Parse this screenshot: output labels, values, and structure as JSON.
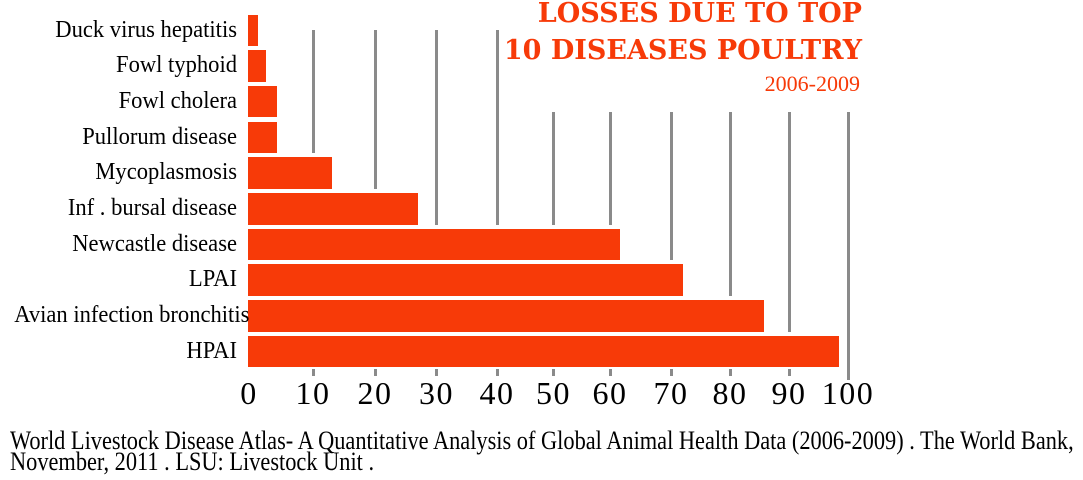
{
  "chart_data": {
    "type": "bar",
    "orientation": "horizontal",
    "title_line1": "LOSSES DUE TO TOP",
    "title_line2": "10 DISEASES POULTRY",
    "subtitle": "2006-2009",
    "categories": [
      "Duck virus hepatitis",
      "Fowl typhoid",
      "Fowl cholera",
      "Pullorum disease",
      "Mycoplasmosis",
      "Inf . bursal disease",
      "Newcastle disease",
      "LPAI",
      "Avian infection bronchitis",
      "HPAI"
    ],
    "values": [
      1.6,
      3,
      4.8,
      4.8,
      14,
      28.3,
      62,
      72.5,
      86,
      98.5
    ],
    "xlim": [
      0,
      100
    ],
    "xticks": [
      0,
      10,
      20,
      30,
      40,
      50,
      60,
      70,
      80,
      90,
      100
    ],
    "grid": "vertical gray lines at ticks 10-100 behind bars",
    "bar_color": "#f73a08",
    "grid_color": "#8a8a8a",
    "title_color": "#f73a08",
    "legend": false
  },
  "footer": {
    "line1": "World Livestock Disease Atlas- A Quantitative Analysis of Global Animal Health Data (2006-2009) . The World Bank,",
    "line2": "November, 2011 . LSU: Livestock Unit ."
  }
}
